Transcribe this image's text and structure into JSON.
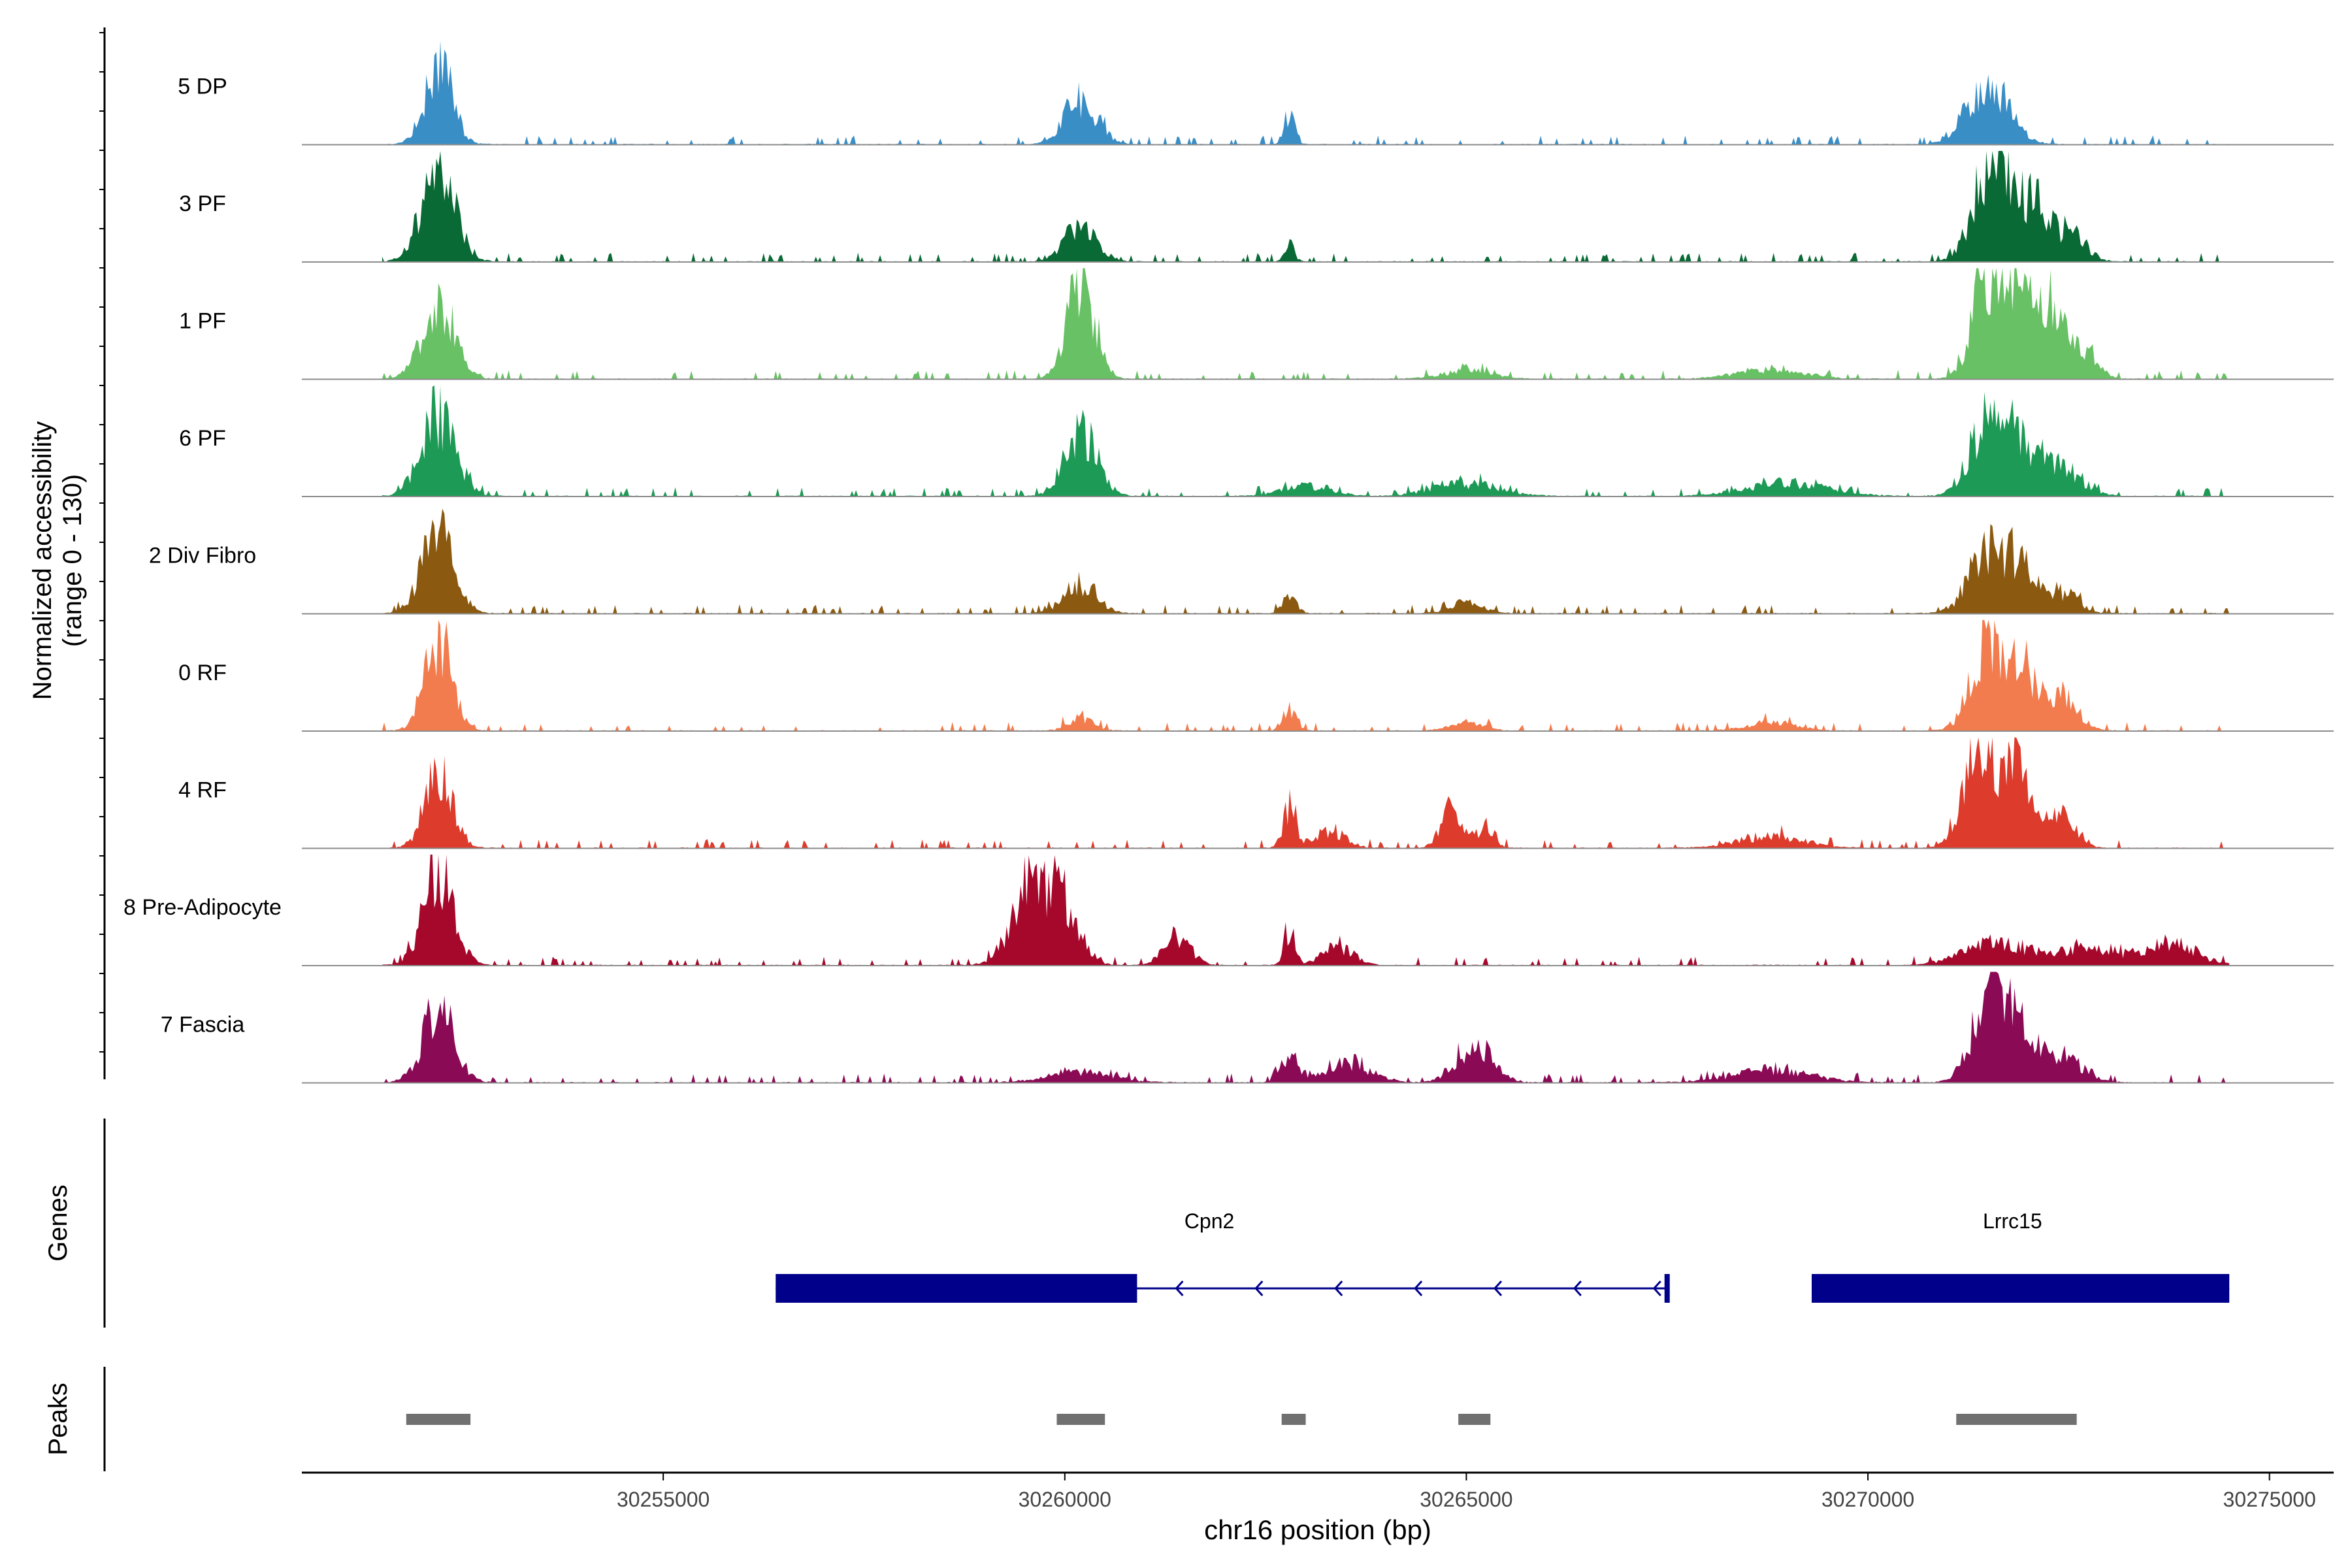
{
  "chart_data": {
    "type": "coverage-track",
    "y_axis_label_line1": "Normalized accessibility",
    "y_axis_label_line2": "(range 0 - 130)",
    "y_range": [
      0,
      130
    ],
    "tracks": [
      {
        "name": "5 DP",
        "color": "#3a8ec6",
        "peaks": [
          [
            30252200,
            95,
            170
          ],
          [
            30260200,
            55,
            200
          ],
          [
            30262800,
            35,
            60
          ],
          [
            30271500,
            75,
            250
          ]
        ]
      },
      {
        "name": "3 PF",
        "color": "#0a6a35",
        "peaks": [
          [
            30252200,
            115,
            200
          ],
          [
            30260200,
            45,
            190
          ],
          [
            30262800,
            20,
            60
          ],
          [
            30271500,
            100,
            200
          ],
          [
            30271800,
            70,
            150
          ],
          [
            30272100,
            55,
            150
          ],
          [
            30272500,
            35,
            200
          ]
        ]
      },
      {
        "name": "1 PF",
        "color": "#69c166",
        "peaks": [
          [
            30252200,
            85,
            200
          ],
          [
            30260200,
            110,
            170
          ],
          [
            30265000,
            10,
            300
          ],
          [
            30268800,
            12,
            400
          ],
          [
            30271500,
            120,
            190
          ],
          [
            30271850,
            75,
            150
          ],
          [
            30272200,
            85,
            160
          ],
          [
            30272600,
            40,
            200
          ]
        ]
      },
      {
        "name": "6 PF",
        "color": "#1d9a55",
        "peaks": [
          [
            30252200,
            95,
            210
          ],
          [
            30260200,
            75,
            200
          ],
          [
            30263000,
            12,
            300
          ],
          [
            30265000,
            15,
            400
          ],
          [
            30269000,
            16,
            500
          ],
          [
            30271500,
            80,
            230
          ],
          [
            30271900,
            55,
            180
          ],
          [
            30272400,
            35,
            250
          ]
        ]
      },
      {
        "name": "2 Div Fibro",
        "color": "#8b5a10",
        "peaks": [
          [
            30252200,
            95,
            200
          ],
          [
            30260200,
            35,
            200
          ],
          [
            30262800,
            25,
            80
          ],
          [
            30265000,
            12,
            200
          ],
          [
            30271500,
            70,
            240
          ],
          [
            30271900,
            45,
            180
          ],
          [
            30272400,
            25,
            200
          ]
        ]
      },
      {
        "name": "0 RF",
        "color": "#f27c4e",
        "peaks": [
          [
            30252200,
            110,
            170
          ],
          [
            30260200,
            15,
            150
          ],
          [
            30262800,
            25,
            80
          ],
          [
            30265000,
            10,
            200
          ],
          [
            30268800,
            10,
            300
          ],
          [
            30271500,
            100,
            210
          ],
          [
            30271900,
            70,
            160
          ],
          [
            30272400,
            35,
            220
          ]
        ]
      },
      {
        "name": "4 RF",
        "color": "#dd3b2c",
        "peaks": [
          [
            30252200,
            85,
            170
          ],
          [
            30262800,
            45,
            80
          ],
          [
            30263300,
            20,
            200
          ],
          [
            30264800,
            45,
            120
          ],
          [
            30265200,
            22,
            120
          ],
          [
            30268800,
            14,
            400
          ],
          [
            30271400,
            115,
            200
          ],
          [
            30271900,
            95,
            160
          ],
          [
            30272400,
            35,
            180
          ]
        ]
      },
      {
        "name": "8 Pre-Adipocyte",
        "color": "#a6082c",
        "peaks": [
          [
            30252200,
            110,
            190
          ],
          [
            30259600,
            90,
            250
          ],
          [
            30260000,
            55,
            200
          ],
          [
            30261400,
            35,
            160
          ],
          [
            30262800,
            40,
            70
          ],
          [
            30263400,
            20,
            200
          ],
          [
            30271600,
            25,
            400
          ],
          [
            30272800,
            20,
            400
          ],
          [
            30273800,
            25,
            300
          ]
        ]
      },
      {
        "name": "7 Fascia",
        "color": "#8b0a56",
        "peaks": [
          [
            30252200,
            85,
            200
          ],
          [
            30260200,
            12,
            400
          ],
          [
            30262800,
            35,
            100
          ],
          [
            30263500,
            22,
            300
          ],
          [
            30265100,
            45,
            220
          ],
          [
            30268800,
            14,
            500
          ],
          [
            30271500,
            100,
            200
          ],
          [
            30271900,
            55,
            200
          ],
          [
            30272400,
            30,
            250
          ]
        ]
      }
    ],
    "genes_label": "Genes",
    "genes": [
      {
        "name": "Cpn2",
        "start": 30256400,
        "end": 30267500,
        "strand": "-",
        "thick_start": 30256400,
        "thick_end": 30260900,
        "label_pos": 30261800
      },
      {
        "name": "Lrrc15",
        "start": 30269300,
        "end": 30274500,
        "strand": "-",
        "thick_start": 30269300,
        "thick_end": 30274500,
        "label_pos": 30271800
      }
    ],
    "peaks_label": "Peaks",
    "peak_regions": [
      [
        30251800,
        30252600
      ],
      [
        30259900,
        30260500
      ],
      [
        30262700,
        30263000
      ],
      [
        30264900,
        30265300
      ],
      [
        30271100,
        30272600
      ]
    ],
    "x_axis": {
      "label": "chr16 position (bp)",
      "min": 30250500,
      "max": 30275800,
      "data_start": 30251500,
      "data_end": 30274500,
      "ticks": [
        30255000,
        30260000,
        30265000,
        30270000,
        30275000
      ],
      "tick_labels": [
        "30255000",
        "30260000",
        "30265000",
        "30270000",
        "30275000"
      ]
    },
    "colors": {
      "gene": "#00008b",
      "peak": "#707070",
      "baseline": "#8c8c8c",
      "axis": "#000000"
    }
  }
}
